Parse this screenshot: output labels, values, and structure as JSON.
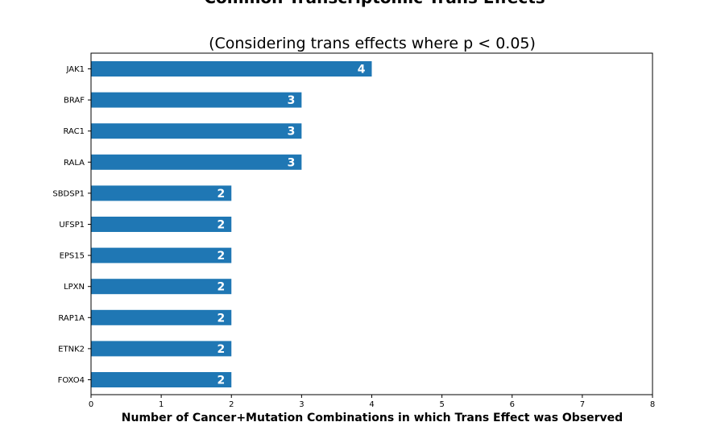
{
  "chart_data": {
    "type": "bar",
    "orientation": "horizontal",
    "title": "Common Transcriptomic Trans Effects",
    "subtitle": "(Considering trans effects where p < 0.05)",
    "xlabel": "Number of Cancer+Mutation Combinations in which Trans Effect was Observed",
    "ylabel": "",
    "xlim": [
      0,
      8
    ],
    "xticks": [
      "0",
      "1",
      "2",
      "3",
      "4",
      "5",
      "6",
      "7",
      "8"
    ],
    "categories": [
      "JAK1",
      "BRAF",
      "RAC1",
      "RALA",
      "SBDSP1",
      "UFSP1",
      "EPS15",
      "LPXN",
      "RAP1A",
      "ETNK2",
      "FOXO4"
    ],
    "values": [
      4,
      3,
      3,
      3,
      2,
      2,
      2,
      2,
      2,
      2,
      2
    ],
    "data_labels": [
      "4",
      "3",
      "3",
      "3",
      "2",
      "2",
      "2",
      "2",
      "2",
      "2",
      "2"
    ],
    "bar_color": "#1f77b4",
    "grid": false,
    "legend": "none"
  }
}
